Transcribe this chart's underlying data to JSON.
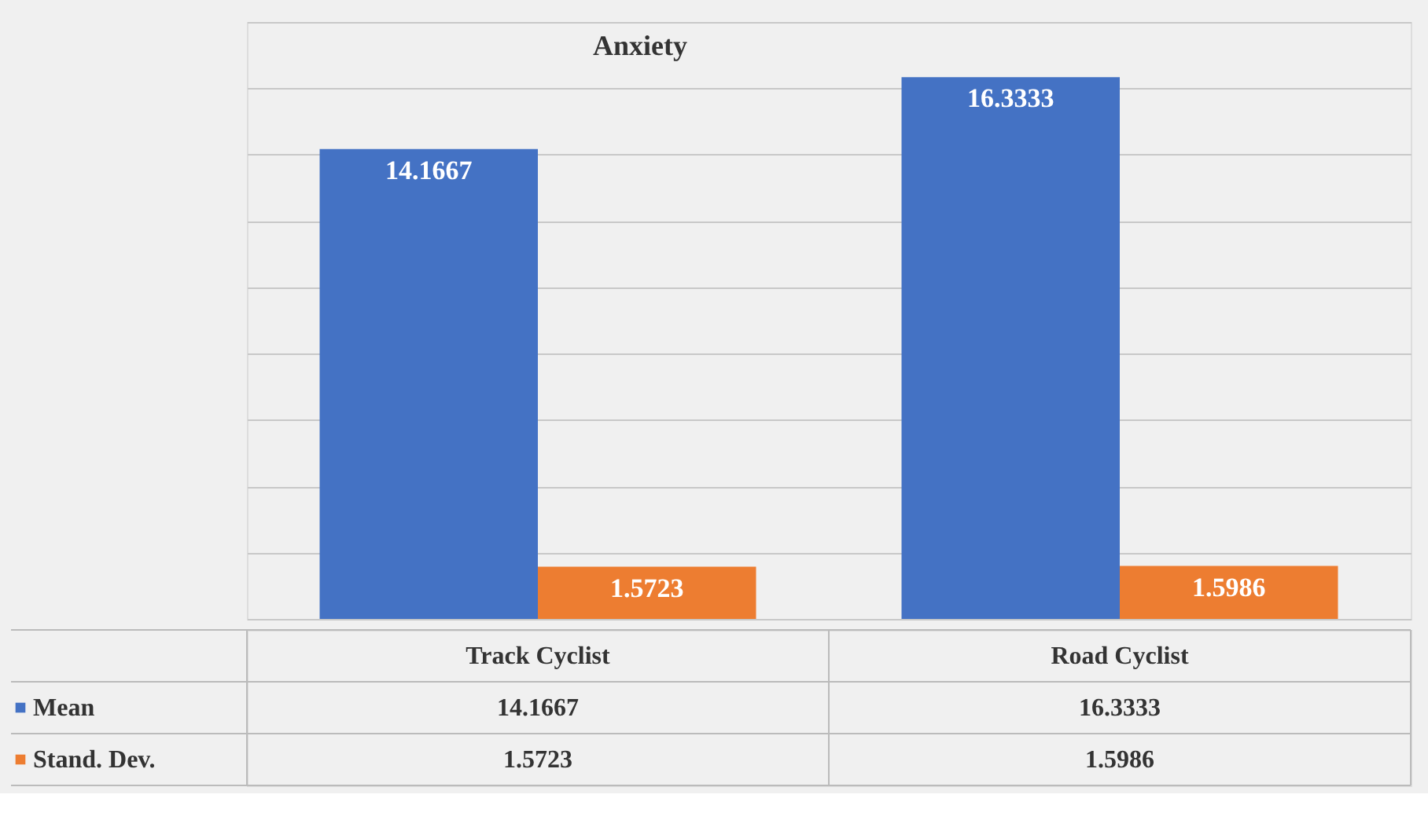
{
  "chart_data": {
    "type": "bar",
    "title": "Anxiety",
    "categories": [
      "Track Cyclist",
      "Road Cyclist"
    ],
    "series": [
      {
        "name": "Mean",
        "color": "#4472c4",
        "values": [
          14.1667,
          16.3333
        ]
      },
      {
        "name": "Stand. Dev.",
        "color": "#ed7d31",
        "values": [
          1.5723,
          1.5986
        ]
      }
    ],
    "ylim": [
      0,
      18
    ],
    "yticks": [
      {
        "value": 0,
        "label": null
      },
      {
        "value": 2,
        "label": null
      },
      {
        "value": 4,
        "label": null
      },
      {
        "value": 6,
        "label": null
      },
      {
        "value": 8,
        "label": null
      },
      {
        "value": 10,
        "label": null
      },
      {
        "value": 12,
        "label": null
      },
      {
        "value": 14,
        "label": null
      },
      {
        "value": 16,
        "label": null
      },
      {
        "value": 18,
        "label": null
      }
    ],
    "grid": "y",
    "data_labels": true,
    "legend": "bottom",
    "annotations": [
      "14.1667",
      "16.3333",
      "1.5723",
      "1.5986"
    ]
  }
}
